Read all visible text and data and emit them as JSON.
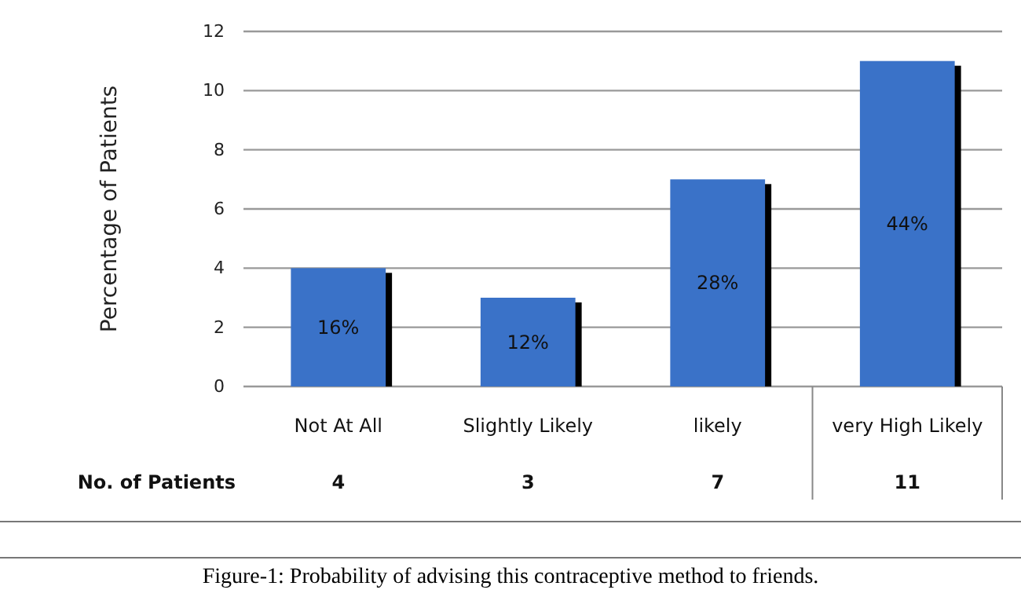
{
  "chart_data": {
    "type": "bar",
    "ylabel": "Percentage of Patients",
    "categories": [
      "Not At All",
      "Slightly Likely",
      "likely",
      "very High Likely"
    ],
    "values": [
      4,
      3,
      7,
      11
    ],
    "color": "#3a72c8",
    "data_labels": true,
    "ylim": [
      0,
      12
    ],
    "yticks": [
      0,
      2,
      4,
      6,
      8,
      10,
      12
    ],
    "grid": "y",
    "annotations": [
      "No. of Patients",
      "16%",
      "12%",
      "28%",
      "44%",
      "Figure-1: Probability of advising this contraceptive method to friends."
    ]
  }
}
